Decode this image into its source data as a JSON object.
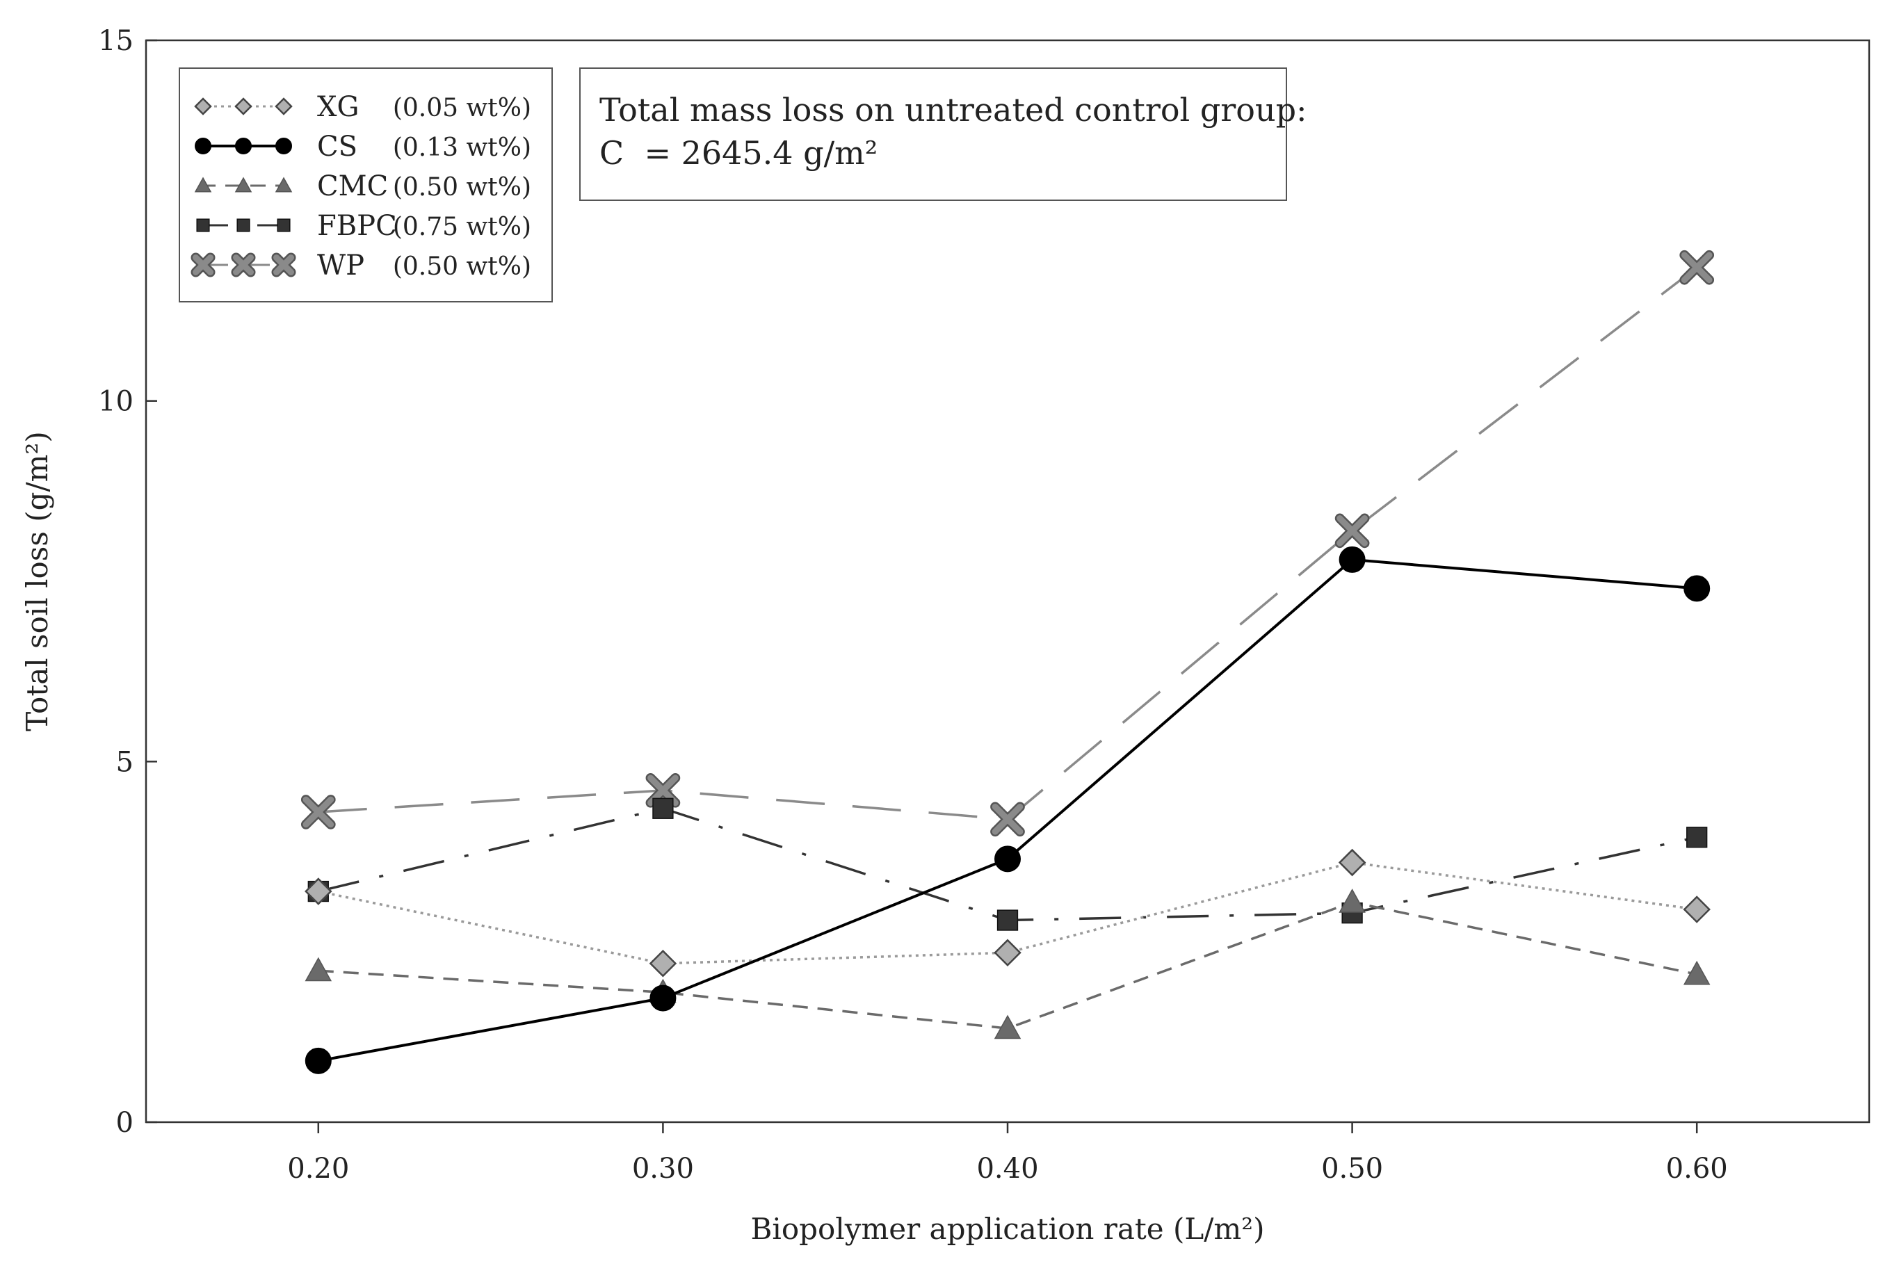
{
  "chart_data": {
    "type": "line",
    "title": "",
    "xlabel": "Biopolymer application rate (L/m²)",
    "ylabel": "Total soil loss (g/m²)",
    "x": [
      0.2,
      0.3,
      0.4,
      0.5,
      0.6
    ],
    "x_tick_labels": [
      "0.20",
      "0.30",
      "0.40",
      "0.50",
      "0.60"
    ],
    "xlim": [
      0.15,
      0.65
    ],
    "ylim": [
      0,
      15
    ],
    "y_ticks": [
      0,
      5,
      10,
      15
    ],
    "y_tick_labels": [
      "0",
      "5",
      "10",
      "15"
    ],
    "grid": false,
    "legend_position": "top-left",
    "series": [
      {
        "name": "XG",
        "concentration": "(0.05 wt%)",
        "values": [
          3.2,
          2.2,
          2.35,
          3.6,
          2.95
        ],
        "color": "#9a9a9a",
        "marker": "diamond",
        "line": "dotted"
      },
      {
        "name": "CS",
        "concentration": "(0.13 wt%)",
        "values": [
          0.85,
          1.72,
          3.65,
          7.8,
          7.4
        ],
        "color": "#000000",
        "marker": "circle",
        "line": "solid"
      },
      {
        "name": "CMC",
        "concentration": "(0.50 wt%)",
        "values": [
          2.1,
          1.8,
          1.3,
          3.05,
          2.05
        ],
        "color": "#6a6a6a",
        "marker": "triangle",
        "line": "dashed"
      },
      {
        "name": "FBPC",
        "concentration": "(0.75 wt%)",
        "values": [
          3.2,
          4.35,
          2.8,
          2.9,
          3.95
        ],
        "color": "#333333",
        "marker": "square",
        "line": "dashdot"
      },
      {
        "name": "WP",
        "concentration": "(0.50 wt%)",
        "values": [
          4.3,
          4.6,
          4.2,
          8.2,
          11.85
        ],
        "color": "#8a8a8a",
        "marker": "cross",
        "line": "longdash"
      }
    ],
    "annotation": {
      "line1": "Total mass loss on untreated control group:",
      "line2": "C  = 2645.4 g/m²"
    }
  }
}
